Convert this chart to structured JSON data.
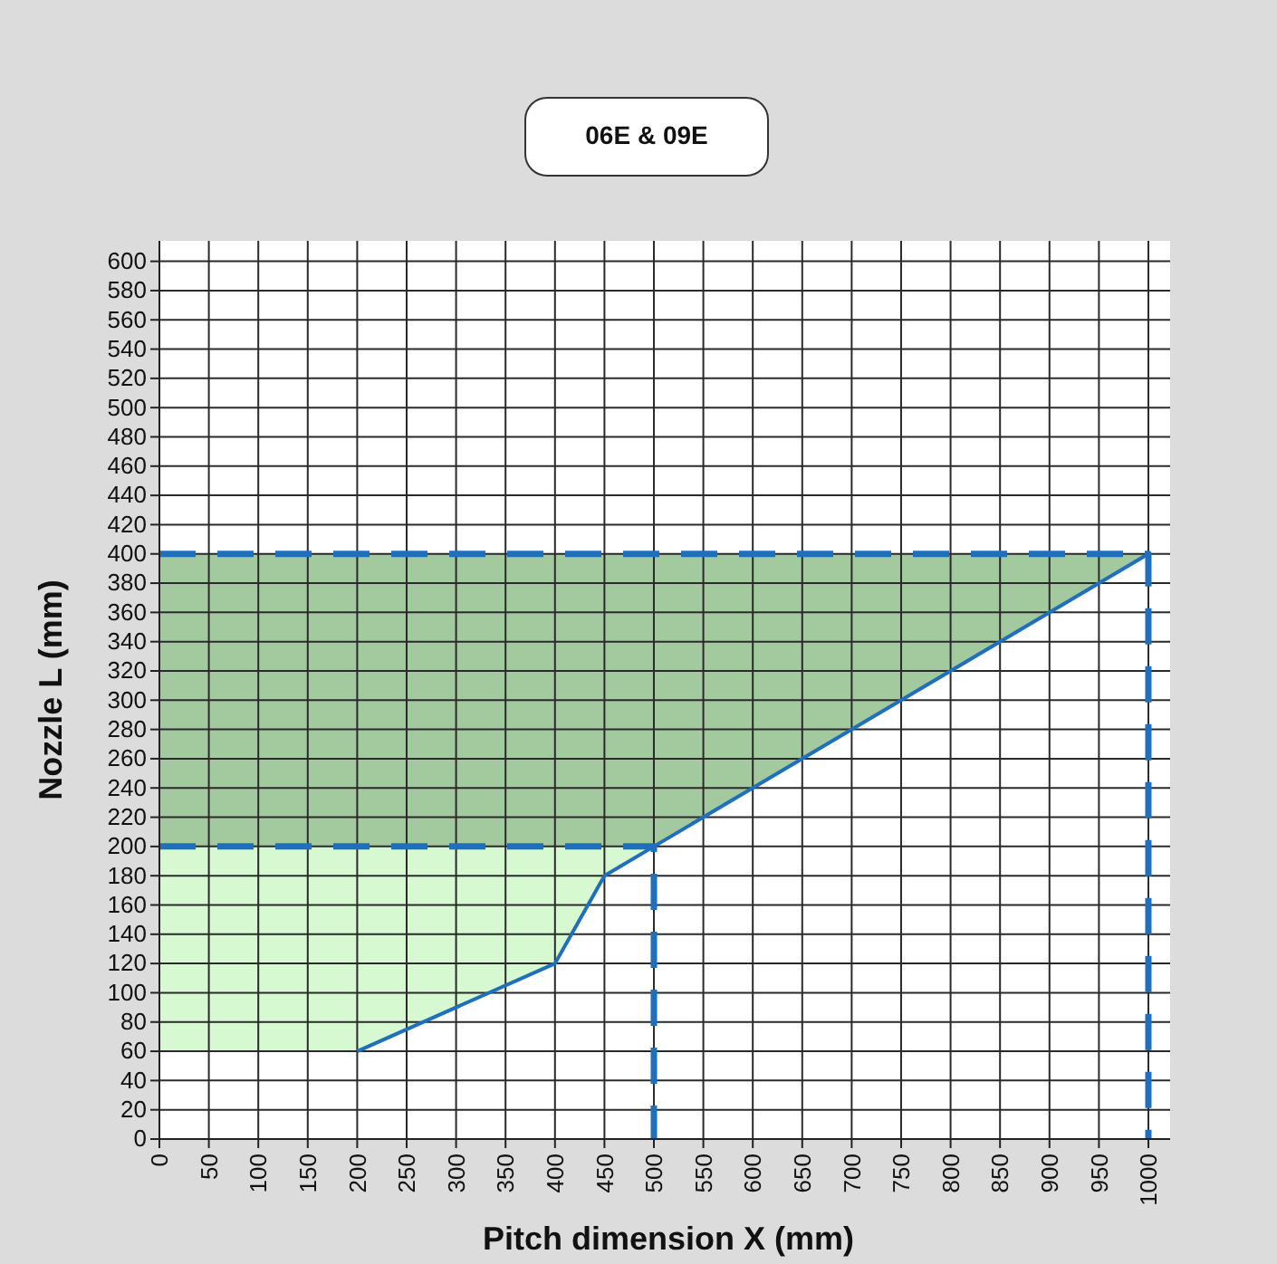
{
  "chart_data": {
    "type": "line",
    "title": "06E & 09E",
    "xlabel": "Pitch dimension X (mm)",
    "ylabel": "Nozzle L (mm)",
    "xlim": [
      0,
      1022
    ],
    "ylim": [
      0,
      614
    ],
    "xticks": [
      0,
      50,
      100,
      150,
      200,
      250,
      300,
      350,
      400,
      450,
      500,
      550,
      600,
      650,
      700,
      750,
      800,
      850,
      900,
      950,
      1000
    ],
    "yticks": [
      0,
      20,
      40,
      60,
      80,
      100,
      120,
      140,
      160,
      180,
      200,
      220,
      240,
      260,
      280,
      300,
      320,
      340,
      360,
      380,
      400,
      420,
      440,
      460,
      480,
      500,
      520,
      540,
      560,
      580,
      600
    ],
    "grid": true,
    "series": [
      {
        "type": "area",
        "color": "#a3c99f",
        "x": [
          0,
          500,
          1000
        ],
        "values": [
          null,
          null,
          null
        ],
        "lower": [
          200,
          200,
          400
        ],
        "upper": [
          400,
          400,
          400
        ]
      },
      {
        "type": "area",
        "color": "#d6f9d2",
        "x": [
          0,
          200,
          400,
          450,
          500
        ],
        "values": [
          null,
          null,
          null,
          null,
          null
        ],
        "lower": [
          60,
          60,
          120,
          180,
          200
        ],
        "upper": [
          200,
          200,
          200,
          200,
          200
        ]
      },
      {
        "color": "#1f6fbf",
        "line_style": "dashed",
        "x": [
          0,
          1000,
          1000
        ],
        "values": [
          400,
          400,
          0
        ]
      },
      {
        "color": "#1f6fbf",
        "line_style": "dashed",
        "x": [
          0,
          500,
          500
        ],
        "values": [
          200,
          200,
          0
        ]
      },
      {
        "color": "#1f6fbf",
        "line_style": "solid",
        "x": [
          200,
          400,
          450,
          500,
          1000
        ],
        "values": [
          60,
          120,
          180,
          200,
          400
        ]
      }
    ]
  }
}
